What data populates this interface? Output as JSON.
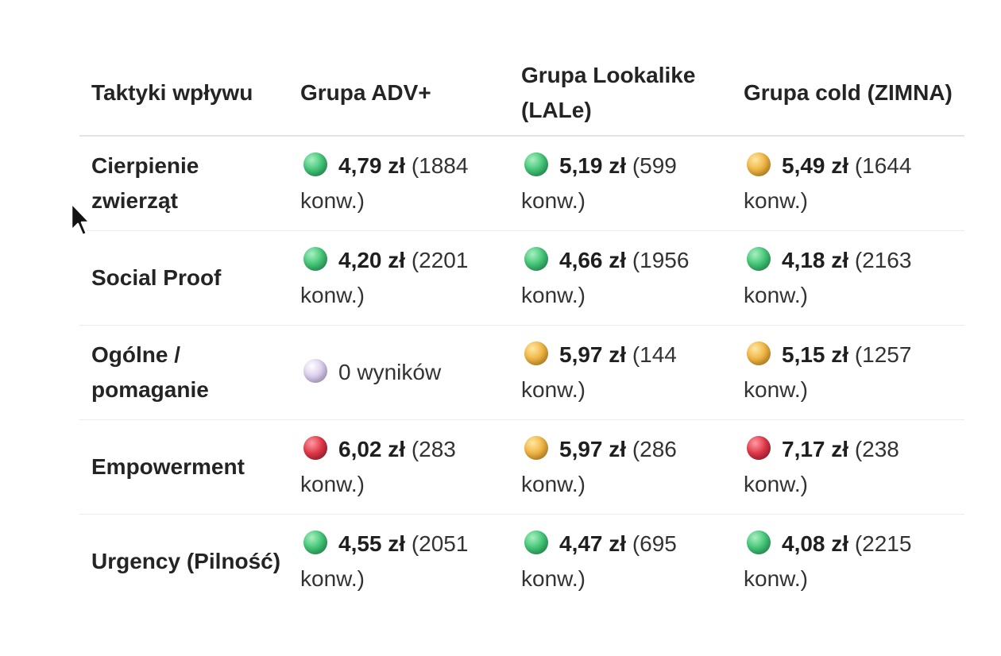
{
  "table": {
    "headers": [
      "Taktyki wpływu",
      "Grupa ADV+",
      "Grupa Lookalike (LALe)",
      "Grupa cold (ZIMNA)"
    ],
    "rows": [
      {
        "tactic": "Cierpienie zwierząt",
        "cells": [
          {
            "status": "green",
            "price": "4,79 zł",
            "conv": " (1884 konw.)"
          },
          {
            "status": "green",
            "price": "5,19 zł",
            "conv": " (599 konw.)"
          },
          {
            "status": "yellow",
            "price": "5,49 zł",
            "conv": " (1644 konw.)"
          }
        ]
      },
      {
        "tactic": "Social Proof",
        "cells": [
          {
            "status": "green",
            "price": "4,20 zł",
            "conv": " (2201 konw.)"
          },
          {
            "status": "green",
            "price": "4,66 zł",
            "conv": " (1956 konw.)"
          },
          {
            "status": "green",
            "price": "4,18 zł",
            "conv": " (2163 konw.)"
          }
        ]
      },
      {
        "tactic": "Ogólne / pomaganie",
        "cells": [
          {
            "status": "purple",
            "price": "",
            "conv": "0 wyników"
          },
          {
            "status": "yellow",
            "price": "5,97 zł",
            "conv": " (144 konw.)"
          },
          {
            "status": "yellow",
            "price": "5,15 zł",
            "conv": " (1257 konw.)"
          }
        ]
      },
      {
        "tactic": "Empowerment",
        "cells": [
          {
            "status": "red",
            "price": "6,02 zł",
            "conv": " (283 konw.)"
          },
          {
            "status": "yellow",
            "price": "5,97 zł",
            "conv": " (286 konw.)"
          },
          {
            "status": "red",
            "price": "7,17 zł",
            "conv": " (238 konw.)"
          }
        ]
      },
      {
        "tactic": "Urgency (Pilność)",
        "cells": [
          {
            "status": "green",
            "price": "4,55 zł",
            "conv": " (2051 konw.)"
          },
          {
            "status": "green",
            "price": "4,47 zł",
            "conv": " (695 konw.)"
          },
          {
            "status": "green",
            "price": "4,08 zł",
            "conv": " (2215 konw.)"
          }
        ]
      }
    ]
  },
  "status_colors": {
    "green": "#45c779",
    "yellow": "#f0b645",
    "red": "#e03a4a",
    "purple": "#ddd0ee"
  },
  "cursor": {
    "icon": "mouse-pointer-icon"
  }
}
